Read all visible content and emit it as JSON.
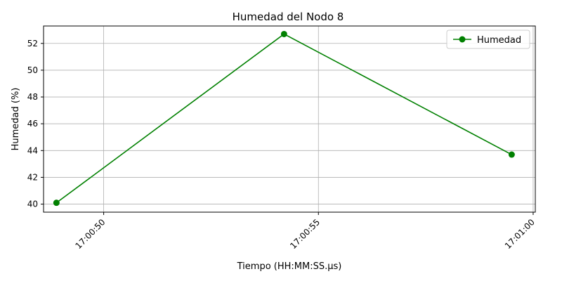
{
  "chart_data": {
    "type": "line",
    "title": "Humedad del Nodo 8",
    "xlabel": "Tiempo (HH:MM:SS.µs)",
    "ylabel": "Humedad (%)",
    "x_ticks": [
      "17:00:50",
      "17:00:55",
      "17:01:00"
    ],
    "y_ticks": [
      "40",
      "42",
      "44",
      "46",
      "48",
      "50",
      "52"
    ],
    "xlim": [
      "17:00:48.6",
      "17:01:00.05"
    ],
    "ylim": [
      39.4,
      53.3
    ],
    "grid": true,
    "legend_position": "top-right",
    "series": [
      {
        "name": "Humedad",
        "color": "#008000",
        "marker": "circle",
        "x": [
          "17:00:48.9",
          "17:00:54.2",
          "17:00:59.5"
        ],
        "y": [
          40.1,
          52.7,
          43.7
        ]
      }
    ]
  }
}
